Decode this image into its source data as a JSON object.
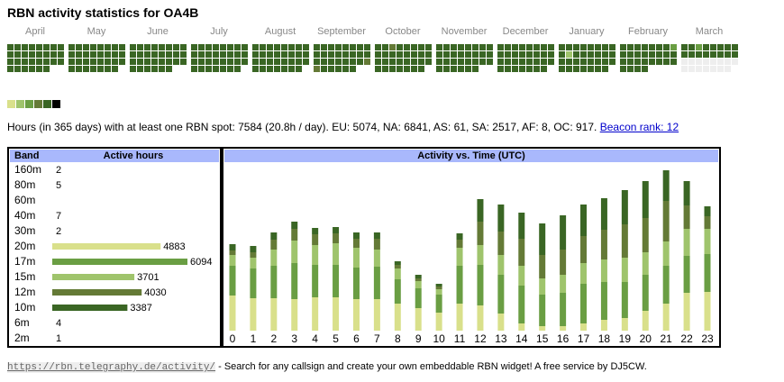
{
  "title": "RBN activity statistics for OA4B",
  "calendar": {
    "months": [
      "April",
      "May",
      "June",
      "July",
      "August",
      "September",
      "October",
      "November",
      "December",
      "January",
      "February",
      "March"
    ],
    "level_colors": [
      "#eeeeee",
      "#d9e08b",
      "#9fc46c",
      "#6a9e43",
      "#647a36",
      "#3a6624",
      "#000000"
    ],
    "levels": [
      [
        5,
        5,
        5,
        5,
        5,
        5,
        5,
        5,
        5,
        5,
        5,
        5,
        5,
        5,
        5,
        5,
        5,
        5,
        5,
        5,
        5,
        5,
        5,
        5,
        5,
        5,
        5,
        5,
        5,
        5
      ],
      [
        5,
        5,
        5,
        5,
        5,
        5,
        5,
        5,
        5,
        5,
        5,
        5,
        5,
        5,
        5,
        5,
        5,
        5,
        5,
        5,
        5,
        5,
        5,
        5,
        5,
        5,
        5,
        5,
        5,
        5,
        5
      ],
      [
        5,
        5,
        5,
        5,
        5,
        5,
        5,
        5,
        5,
        5,
        5,
        5,
        5,
        5,
        5,
        5,
        5,
        5,
        5,
        5,
        5,
        5,
        5,
        5,
        5,
        5,
        5,
        5,
        5,
        5
      ],
      [
        5,
        5,
        5,
        5,
        5,
        5,
        5,
        5,
        5,
        5,
        5,
        5,
        5,
        5,
        5,
        5,
        5,
        5,
        5,
        5,
        5,
        5,
        5,
        5,
        5,
        5,
        5,
        5,
        5,
        5,
        5
      ],
      [
        5,
        5,
        5,
        5,
        5,
        5,
        5,
        5,
        5,
        5,
        5,
        5,
        5,
        5,
        5,
        5,
        5,
        5,
        5,
        5,
        5,
        5,
        5,
        5,
        5,
        5,
        5,
        5,
        5,
        5,
        5
      ],
      [
        5,
        5,
        5,
        5,
        5,
        5,
        5,
        5,
        5,
        5,
        5,
        5,
        5,
        5,
        5,
        5,
        5,
        5,
        5,
        5,
        5,
        5,
        5,
        4,
        4,
        5,
        5,
        5,
        5,
        5
      ],
      [
        5,
        5,
        4,
        5,
        5,
        5,
        5,
        5,
        5,
        5,
        5,
        5,
        5,
        5,
        5,
        5,
        5,
        5,
        5,
        5,
        5,
        5,
        5,
        5,
        5,
        5,
        5,
        5,
        5,
        5,
        5
      ],
      [
        5,
        5,
        5,
        5,
        5,
        5,
        5,
        5,
        5,
        5,
        5,
        5,
        5,
        5,
        5,
        5,
        5,
        5,
        5,
        5,
        5,
        5,
        5,
        5,
        5,
        5,
        5,
        5,
        5,
        5
      ],
      [
        5,
        5,
        5,
        5,
        5,
        5,
        5,
        5,
        5,
        5,
        5,
        5,
        5,
        5,
        5,
        5,
        5,
        5,
        5,
        5,
        5,
        5,
        5,
        5,
        5,
        5,
        5,
        5,
        5,
        5,
        5
      ],
      [
        5,
        5,
        5,
        5,
        5,
        5,
        5,
        5,
        5,
        2,
        5,
        5,
        5,
        5,
        5,
        5,
        5,
        5,
        5,
        5,
        5,
        5,
        5,
        5,
        5,
        5,
        5,
        5,
        5,
        5,
        5
      ],
      [
        5,
        5,
        5,
        5,
        5,
        5,
        5,
        3,
        5,
        5,
        5,
        5,
        5,
        5,
        5,
        5,
        5,
        5,
        5,
        5,
        5,
        5,
        5,
        5,
        5,
        5,
        5,
        5
      ],
      [
        5,
        5,
        3,
        5,
        5,
        5,
        5,
        5,
        5,
        5,
        5,
        5,
        5,
        5,
        5,
        5,
        0,
        0,
        0,
        0,
        0,
        0,
        0,
        0,
        0,
        0,
        0,
        0,
        0,
        0,
        0
      ]
    ]
  },
  "summary": {
    "text": "Hours (in 365 days) with at least one RBN spot: 7584 (20.8h / day). EU: 5074, NA: 6841, AS: 61, SA: 2517, AF: 8, OC: 917.",
    "link": "Beacon rank: 12"
  },
  "bands_table": {
    "headers": [
      "Band",
      "Active hours"
    ],
    "bands": [
      "160m",
      "80m",
      "60m",
      "40m",
      "30m",
      "20m",
      "17m",
      "15m",
      "12m",
      "10m",
      "6m",
      "2m"
    ],
    "hours": [
      2,
      5,
      null,
      7,
      2,
      4883,
      6094,
      3701,
      4030,
      3387,
      4,
      1
    ]
  },
  "time_chart": {
    "title": "Activity vs. Time (UTC)",
    "categories": [
      0,
      1,
      2,
      3,
      4,
      5,
      6,
      7,
      8,
      9,
      10,
      11,
      12,
      13,
      14,
      15,
      16,
      17,
      18,
      19,
      20,
      21,
      22,
      23
    ],
    "series": [
      {
        "name": "20m",
        "color": "#d9e08b",
        "values": [
          39,
          36,
          36,
          35,
          37,
          37,
          35,
          35,
          30,
          25,
          20,
          30,
          28,
          19,
          8,
          5,
          5,
          8,
          12,
          14,
          22,
          30,
          42,
          43
        ]
      },
      {
        "name": "17m",
        "color": "#6a9e43",
        "values": [
          33,
          33,
          36,
          40,
          36,
          36,
          35,
          36,
          27,
          22,
          20,
          42,
          45,
          43,
          42,
          35,
          37,
          44,
          42,
          40,
          40,
          42,
          41,
          42
        ]
      },
      {
        "name": "15m",
        "color": "#9fc46c",
        "values": [
          12,
          12,
          18,
          25,
          22,
          24,
          22,
          19,
          12,
          8,
          6,
          20,
          22,
          22,
          22,
          18,
          20,
          23,
          25,
          27,
          25,
          27,
          30,
          28
        ]
      },
      {
        "name": "12m",
        "color": "#647a36",
        "values": [
          5,
          6,
          11,
          13,
          12,
          11,
          10,
          12,
          4,
          3,
          3,
          9,
          26,
          26,
          30,
          26,
          28,
          30,
          33,
          37,
          38,
          45,
          26,
          14
        ]
      },
      {
        "name": "10m",
        "color": "#3a6624",
        "values": [
          7,
          7,
          8,
          8,
          7,
          7,
          7,
          7,
          4,
          4,
          3,
          7,
          25,
          30,
          29,
          35,
          38,
          35,
          35,
          38,
          41,
          34,
          27,
          11
        ]
      }
    ]
  },
  "footer": {
    "link": "https://rbn.telegraphy.de/activity/",
    "text": " - Search for any callsign and create your own embeddable RBN widget! A free service by DJ5CW."
  }
}
